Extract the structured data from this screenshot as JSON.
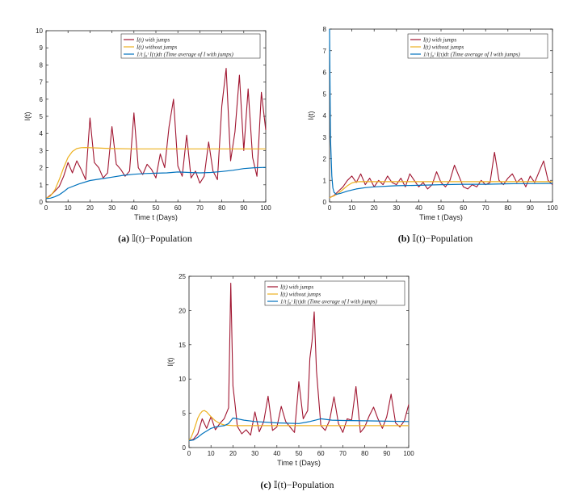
{
  "figure": {
    "panels": [
      {
        "caption_label": "(a)",
        "caption_text": "𝕀(t)−Population"
      },
      {
        "caption_label": "(b)",
        "caption_text": "𝕀(t)−Population"
      },
      {
        "caption_label": "(c)",
        "caption_text": "𝕀(t)−Population"
      }
    ]
  },
  "colors": {
    "with_jumps": "#a01530",
    "without_jumps": "#edb120",
    "time_average": "#0072bd"
  },
  "chart_data": [
    {
      "type": "line",
      "xlabel": "Time t (Days)",
      "ylabel": "I(t)",
      "xlim": [
        0,
        100
      ],
      "ylim": [
        0,
        10
      ],
      "xticks": [
        0,
        10,
        20,
        30,
        40,
        50,
        60,
        70,
        80,
        90,
        100
      ],
      "yticks": [
        0,
        1,
        2,
        3,
        4,
        5,
        6,
        7,
        8,
        9,
        10
      ],
      "legend": [
        "I(t) with jumps",
        "I(t) without jumps",
        "1/t ∫₀ᵗ I(τ)dτ (Time average of I with jumps)"
      ],
      "legend_position": "top-center",
      "series": [
        {
          "name": "I(t) with jumps",
          "x": [
            0,
            3,
            6,
            8,
            10,
            12,
            14,
            16,
            18,
            20,
            22,
            24,
            26,
            28,
            30,
            32,
            34,
            36,
            38,
            40,
            42,
            44,
            46,
            48,
            50,
            52,
            54,
            56,
            58,
            60,
            62,
            64,
            66,
            68,
            70,
            72,
            74,
            76,
            78,
            80,
            82,
            84,
            86,
            88,
            90,
            92,
            94,
            96,
            98,
            100
          ],
          "y": [
            0.2,
            0.5,
            0.9,
            1.5,
            2.3,
            1.7,
            2.4,
            1.9,
            1.3,
            4.9,
            2.3,
            2.0,
            1.4,
            1.7,
            4.4,
            2.2,
            1.9,
            1.5,
            1.8,
            5.2,
            2.0,
            1.6,
            2.2,
            1.9,
            1.4,
            2.8,
            2.0,
            4.4,
            6.0,
            2.1,
            1.5,
            3.9,
            1.4,
            1.8,
            1.1,
            1.5,
            3.5,
            1.8,
            1.3,
            5.6,
            7.8,
            2.4,
            4.1,
            7.4,
            3.0,
            6.6,
            2.6,
            1.5,
            6.4,
            4.2
          ]
        },
        {
          "name": "I(t) without jumps",
          "x": [
            0,
            2,
            4,
            6,
            8,
            10,
            12,
            14,
            16,
            18,
            20,
            25,
            30,
            40,
            50,
            60,
            70,
            80,
            90,
            100
          ],
          "y": [
            0.2,
            0.35,
            0.7,
            1.3,
            2.0,
            2.6,
            2.95,
            3.12,
            3.17,
            3.18,
            3.17,
            3.14,
            3.12,
            3.1,
            3.1,
            3.1,
            3.1,
            3.1,
            3.1,
            3.1
          ]
        },
        {
          "name": "Time average",
          "x": [
            0,
            2,
            4,
            6,
            8,
            10,
            15,
            20,
            25,
            30,
            35,
            40,
            45,
            50,
            55,
            60,
            65,
            70,
            75,
            80,
            85,
            90,
            95,
            100
          ],
          "y": [
            0.2,
            0.22,
            0.3,
            0.42,
            0.6,
            0.8,
            1.05,
            1.25,
            1.35,
            1.45,
            1.55,
            1.62,
            1.66,
            1.68,
            1.7,
            1.75,
            1.72,
            1.7,
            1.72,
            1.78,
            1.85,
            1.95,
            2.0,
            2.02
          ]
        }
      ]
    },
    {
      "type": "line",
      "xlabel": "Time t (Days)",
      "ylabel": "I(t)",
      "xlim": [
        0,
        100
      ],
      "ylim": [
        0,
        8
      ],
      "xticks": [
        0,
        10,
        20,
        30,
        40,
        50,
        60,
        70,
        80,
        90,
        100
      ],
      "yticks": [
        0,
        1,
        2,
        3,
        4,
        5,
        6,
        7,
        8
      ],
      "legend": [
        "I(t) with jumps",
        "I(t) without jumps",
        "1/t ∫₀ᵗ I(τ)dτ (Time average of I with jumps)"
      ],
      "legend_position": "top-right",
      "series": [
        {
          "name": "I(t) with jumps",
          "x": [
            0,
            2,
            4,
            6,
            8,
            10,
            12,
            14,
            16,
            18,
            20,
            22,
            24,
            26,
            28,
            30,
            32,
            34,
            36,
            38,
            40,
            42,
            44,
            46,
            48,
            50,
            52,
            54,
            56,
            58,
            60,
            62,
            64,
            66,
            68,
            70,
            72,
            74,
            76,
            78,
            80,
            82,
            84,
            86,
            88,
            90,
            92,
            94,
            96,
            98,
            100
          ],
          "y": [
            0.2,
            0.3,
            0.5,
            0.7,
            1.0,
            1.2,
            0.9,
            1.3,
            0.8,
            1.1,
            0.7,
            1.0,
            0.8,
            1.2,
            0.9,
            0.8,
            1.1,
            0.7,
            1.3,
            1.0,
            0.7,
            0.9,
            0.6,
            0.8,
            1.4,
            0.9,
            0.7,
            1.0,
            1.7,
            1.2,
            0.7,
            0.6,
            0.8,
            0.7,
            1.0,
            0.8,
            0.9,
            2.3,
            1.0,
            0.8,
            1.1,
            1.3,
            0.9,
            1.1,
            0.7,
            1.2,
            0.9,
            1.4,
            1.9,
            1.0,
            0.8
          ]
        },
        {
          "name": "I(t) without jumps",
          "x": [
            0,
            2,
            4,
            6,
            8,
            10,
            12,
            14,
            16,
            20,
            30,
            40,
            50,
            60,
            70,
            80,
            90,
            100
          ],
          "y": [
            0.2,
            0.28,
            0.4,
            0.58,
            0.75,
            0.88,
            0.93,
            0.94,
            0.94,
            0.94,
            0.94,
            0.94,
            0.94,
            0.94,
            0.94,
            0.94,
            0.94,
            0.94
          ]
        },
        {
          "name": "Time average",
          "x": [
            0,
            0.4,
            1,
            1.5,
            2,
            3,
            5,
            8,
            12,
            16,
            20,
            30,
            40,
            50,
            60,
            70,
            80,
            90,
            100
          ],
          "y": [
            8.0,
            3.0,
            1.2,
            0.65,
            0.45,
            0.35,
            0.4,
            0.5,
            0.6,
            0.66,
            0.7,
            0.75,
            0.77,
            0.8,
            0.82,
            0.82,
            0.84,
            0.85,
            0.86
          ]
        }
      ]
    },
    {
      "type": "line",
      "xlabel": "Time t (Days)",
      "ylabel": "I(t)",
      "xlim": [
        0,
        100
      ],
      "ylim": [
        0,
        25
      ],
      "xticks": [
        0,
        10,
        20,
        30,
        40,
        50,
        60,
        70,
        80,
        90,
        100
      ],
      "yticks": [
        0,
        5,
        10,
        15,
        20,
        25
      ],
      "legend": [
        "I(t) with jumps",
        "I(t) without jumps",
        "1/t ∫₀ᵗ I(τ)dτ (Time average of I with jumps)"
      ],
      "legend_position": "top-right",
      "series": [
        {
          "name": "I(t) with jumps",
          "x": [
            0,
            2,
            4,
            6,
            8,
            10,
            12,
            14,
            16,
            18,
            19,
            20,
            21,
            22,
            24,
            26,
            28,
            30,
            32,
            34,
            36,
            38,
            40,
            42,
            44,
            46,
            48,
            50,
            52,
            54,
            55,
            56,
            57,
            58,
            60,
            62,
            64,
            66,
            68,
            70,
            72,
            74,
            76,
            78,
            80,
            82,
            84,
            86,
            88,
            90,
            92,
            94,
            96,
            98,
            100
          ],
          "y": [
            1.0,
            1.2,
            2.0,
            4.2,
            2.8,
            4.5,
            2.6,
            3.5,
            4.2,
            5.8,
            24.0,
            9.0,
            6.2,
            3.1,
            2.0,
            2.6,
            1.8,
            5.2,
            2.3,
            3.8,
            7.5,
            2.5,
            3.0,
            6.0,
            3.8,
            3.0,
            2.2,
            9.6,
            4.2,
            5.4,
            13.0,
            15.5,
            19.8,
            11.2,
            3.2,
            2.5,
            4.0,
            7.4,
            3.5,
            2.2,
            4.2,
            4.0,
            8.9,
            2.2,
            3.0,
            4.6,
            5.9,
            4.2,
            2.8,
            4.5,
            7.8,
            3.6,
            3.0,
            3.9,
            6.3
          ]
        },
        {
          "name": "I(t) without jumps",
          "x": [
            0,
            1,
            2,
            3,
            4,
            5,
            6,
            7,
            8,
            10,
            12,
            14,
            16,
            20,
            30,
            40,
            50,
            60,
            70,
            80,
            90,
            100
          ],
          "y": [
            1.0,
            1.5,
            2.3,
            3.3,
            4.3,
            4.9,
            5.3,
            5.4,
            5.2,
            4.5,
            3.9,
            3.5,
            3.3,
            3.2,
            3.2,
            3.2,
            3.2,
            3.2,
            3.2,
            3.2,
            3.2,
            3.2
          ]
        },
        {
          "name": "Time average",
          "x": [
            0,
            2,
            4,
            6,
            8,
            10,
            12,
            14,
            16,
            18,
            20,
            22,
            25,
            30,
            40,
            50,
            55,
            60,
            65,
            70,
            80,
            90,
            100
          ],
          "y": [
            1.0,
            1.1,
            1.5,
            2.0,
            2.4,
            2.8,
            3.0,
            3.1,
            3.2,
            3.5,
            4.3,
            4.2,
            4.0,
            3.8,
            3.6,
            3.5,
            3.8,
            4.2,
            4.0,
            3.95,
            3.9,
            3.85,
            3.8
          ]
        }
      ]
    }
  ]
}
